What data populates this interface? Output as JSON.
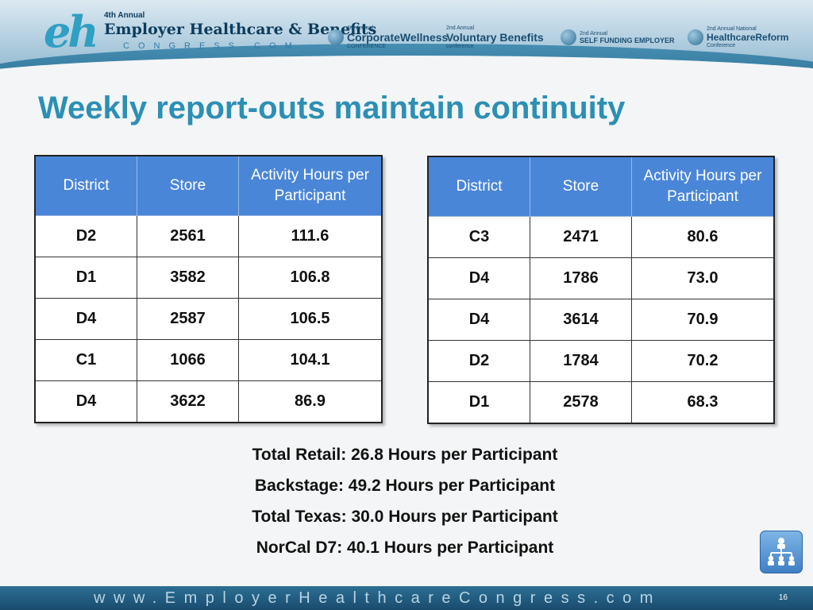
{
  "header": {
    "logo_annual": "4th Annual",
    "logo_title": "Employer Healthcare & Benefits",
    "logo_congress": "CONGRESS.COM",
    "logo_mark": "eh",
    "partner_logos": [
      {
        "small": "4th Annual",
        "name": "CorporateWellness",
        "sub": "CONFERENCE"
      },
      {
        "small": "2nd Annual",
        "name": "Voluntary Benefits",
        "sub": "conference"
      },
      {
        "small": "2nd Annual",
        "name": "SELF FUNDING EMPLOYER",
        "sub": ""
      },
      {
        "small": "2nd Annual National",
        "name": "HealthcareReform",
        "sub": "Conference"
      }
    ]
  },
  "slide": {
    "title": "Weekly report-outs maintain continuity"
  },
  "table_left": {
    "headers": [
      "District",
      "Store",
      "Activity Hours per Participant"
    ],
    "rows": [
      [
        "D2",
        "2561",
        "111.6"
      ],
      [
        "D1",
        "3582",
        "106.8"
      ],
      [
        "D4",
        "2587",
        "106.5"
      ],
      [
        "C1",
        "1066",
        "104.1"
      ],
      [
        "D4",
        "3622",
        "86.9"
      ]
    ]
  },
  "table_right": {
    "headers": [
      "District",
      "Store",
      "Activity Hours per Participant"
    ],
    "rows": [
      [
        "C3",
        "2471",
        "80.6"
      ],
      [
        "D4",
        "1786",
        "73.0"
      ],
      [
        "D4",
        "3614",
        "70.9"
      ],
      [
        "D2",
        "1784",
        "70.2"
      ],
      [
        "D1",
        "2578",
        "68.3"
      ]
    ]
  },
  "summary": [
    "Total Retail: 26.8 Hours per Participant",
    "Backstage: 49.2 Hours per Participant",
    "Total Texas: 30.0 Hours per Participant",
    "NorCal D7: 40.1 Hours per Participant"
  ],
  "footer": {
    "url": "www.EmployerHealthcareCongress.com",
    "page_number": "16"
  },
  "icons": {
    "org_chart": "org-chart-icon"
  },
  "colors": {
    "title": "#2c8fb4",
    "table_header": "#4a86d8",
    "footer": "#1a4b6e"
  }
}
